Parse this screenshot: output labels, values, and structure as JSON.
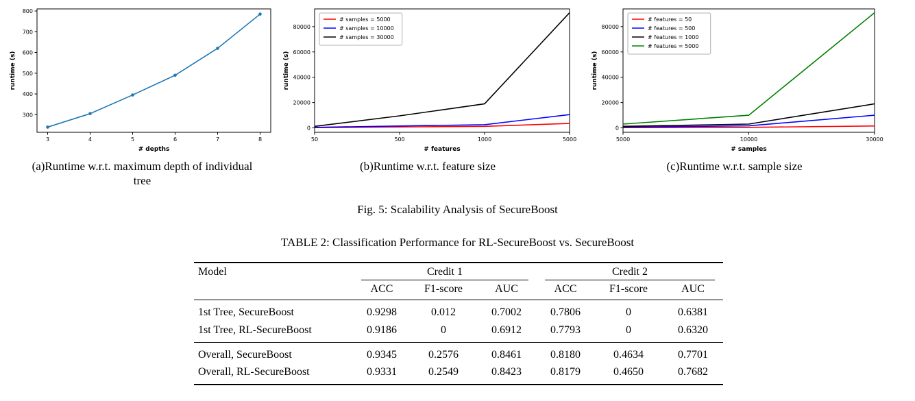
{
  "figure": {
    "caption": "Fig. 5: Scalability Analysis of SecureBoost",
    "subfigures": [
      {
        "caption": "(a)Runtime w.r.t. maximum depth of individual tree"
      },
      {
        "caption": "(b)Runtime w.r.t. feature size"
      },
      {
        "caption": "(c)Runtime w.r.t. sample size"
      }
    ]
  },
  "chart_data": [
    {
      "type": "line",
      "xlabel": "# depths",
      "ylabel": "runtime (s)",
      "x_mode": "linear",
      "x": [
        3,
        4,
        5,
        6,
        7,
        8
      ],
      "xlim": [
        2.75,
        8.25
      ],
      "ylim": [
        215,
        810
      ],
      "yticks": [
        300,
        400,
        500,
        600,
        700,
        800
      ],
      "grid": false,
      "legend": null,
      "series": [
        {
          "name": "runtime",
          "color": "#1f77b4",
          "marker": true,
          "values": [
            240,
            305,
            395,
            490,
            620,
            785
          ]
        }
      ]
    },
    {
      "type": "line",
      "xlabel": "# features",
      "ylabel": "runtime (s)",
      "x_mode": "index",
      "x": [
        50,
        500,
        1000,
        5000
      ],
      "ylim": [
        -3500,
        94000
      ],
      "yticks": [
        0,
        20000,
        40000,
        60000,
        80000
      ],
      "grid": false,
      "legend": "top-left",
      "series": [
        {
          "name": "# samples = 5000",
          "color": "#ff0000",
          "marker": false,
          "values": [
            150,
            700,
            1200,
            3500
          ]
        },
        {
          "name": "# samples = 10000",
          "color": "#0000ff",
          "marker": false,
          "values": [
            400,
            1500,
            2500,
            10500
          ]
        },
        {
          "name": "# samples = 30000",
          "color": "#000000",
          "marker": false,
          "values": [
            1200,
            9500,
            19000,
            91000
          ]
        }
      ]
    },
    {
      "type": "line",
      "xlabel": "# samples",
      "ylabel": "runtime (s)",
      "x_mode": "index",
      "x": [
        5000,
        10000,
        30000
      ],
      "ylim": [
        -3500,
        94000
      ],
      "yticks": [
        0,
        20000,
        40000,
        60000,
        80000
      ],
      "grid": false,
      "legend": "top-left",
      "series": [
        {
          "name": "# features = 50",
          "color": "#ff0000",
          "marker": false,
          "values": [
            200,
            400,
            1500
          ]
        },
        {
          "name": "# features = 500",
          "color": "#0000ff",
          "marker": false,
          "values": [
            600,
            1600,
            10000
          ]
        },
        {
          "name": "# features = 1000",
          "color": "#000000",
          "marker": false,
          "values": [
            1200,
            3000,
            19000
          ]
        },
        {
          "name": "# features = 5000",
          "color": "#008000",
          "marker": false,
          "values": [
            3000,
            10000,
            91000
          ]
        }
      ]
    }
  ],
  "table": {
    "title": "TABLE 2: Classification Performance for RL-SecureBoost vs. SecureBoost",
    "model_header": "Model",
    "groups": [
      "Credit 1",
      "Credit 2"
    ],
    "subcolumns": [
      "ACC",
      "F1-score",
      "AUC",
      "ACC",
      "F1-score",
      "AUC"
    ],
    "rows": [
      {
        "model": "1st Tree, SecureBoost",
        "values": [
          "0.9298",
          "0.012",
          "0.7002",
          "0.7806",
          "0",
          "0.6381"
        ]
      },
      {
        "model": "1st Tree, RL-SecureBoost",
        "values": [
          "0.9186",
          "0",
          "0.6912",
          "0.7793",
          "0",
          "0.6320"
        ]
      },
      {
        "model": "Overall, SecureBoost",
        "values": [
          "0.9345",
          "0.2576",
          "0.8461",
          "0.8180",
          "0.4634",
          "0.7701"
        ]
      },
      {
        "model": "Overall, RL-SecureBoost",
        "values": [
          "0.9331",
          "0.2549",
          "0.8423",
          "0.8179",
          "0.4650",
          "0.7682"
        ]
      }
    ]
  }
}
